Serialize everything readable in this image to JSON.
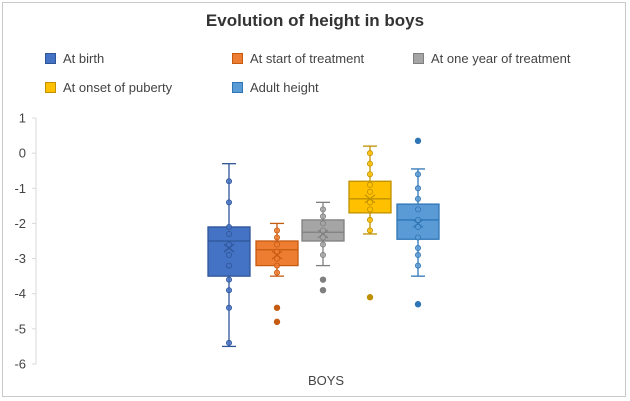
{
  "chart_data": {
    "type": "box",
    "title": "Evolution of height in boys",
    "xlabel": "",
    "ylabel": "",
    "categories": [
      "BOYS"
    ],
    "ylim": [
      -6,
      1
    ],
    "yticks": [
      1,
      0,
      -1,
      -2,
      -3,
      -4,
      -5,
      -6
    ],
    "grid": false,
    "legend_position": "top",
    "series": [
      {
        "name": "At birth",
        "color": "#4472c4",
        "stroke": "#2f5597",
        "min": -5.5,
        "q1": -3.5,
        "median": -2.5,
        "q3": -2.1,
        "max": -0.3,
        "mean": -2.7,
        "points": [
          -0.8,
          -1.4,
          -2.1,
          -2.3,
          -2.6,
          -2.9,
          -3.2,
          -3.6,
          -3.9,
          -4.4,
          -5.4
        ],
        "outliers": []
      },
      {
        "name": "At start of treatment",
        "color": "#ed7d31",
        "stroke": "#c55a11",
        "min": -3.5,
        "q1": -3.2,
        "median": -2.75,
        "q3": -2.5,
        "max": -2.0,
        "mean": -2.9,
        "points": [
          -2.2,
          -2.4,
          -2.6,
          -2.8,
          -3.0,
          -3.2,
          -3.4
        ],
        "outliers": [
          -4.4,
          -4.8
        ]
      },
      {
        "name": "At one year of treatment",
        "color": "#a5a5a5",
        "stroke": "#7f7f7f",
        "min": -3.2,
        "q1": -2.5,
        "median": -2.25,
        "q3": -1.9,
        "max": -1.4,
        "mean": -2.3,
        "points": [
          -1.6,
          -1.8,
          -2.0,
          -2.2,
          -2.4,
          -2.6,
          -2.9
        ],
        "outliers": [
          -3.6,
          -3.9
        ]
      },
      {
        "name": "At onset of puberty",
        "color": "#ffc000",
        "stroke": "#bf9000",
        "min": -2.3,
        "q1": -1.7,
        "median": -1.3,
        "q3": -0.8,
        "max": 0.2,
        "mean": -1.3,
        "points": [
          0.0,
          -0.3,
          -0.6,
          -0.9,
          -1.1,
          -1.4,
          -1.6,
          -1.9,
          -2.2
        ],
        "outliers": [
          -4.1
        ]
      },
      {
        "name": "Adult height",
        "color": "#5b9bd5",
        "stroke": "#2e75b6",
        "min": -3.5,
        "q1": -2.45,
        "median": -1.9,
        "q3": -1.45,
        "max": -0.45,
        "mean": -2.0,
        "points": [
          -0.6,
          -1.0,
          -1.3,
          -1.6,
          -1.9,
          -2.1,
          -2.4,
          -2.7,
          -2.9,
          -3.2
        ],
        "outliers": [
          0.35,
          -4.3
        ]
      }
    ]
  }
}
